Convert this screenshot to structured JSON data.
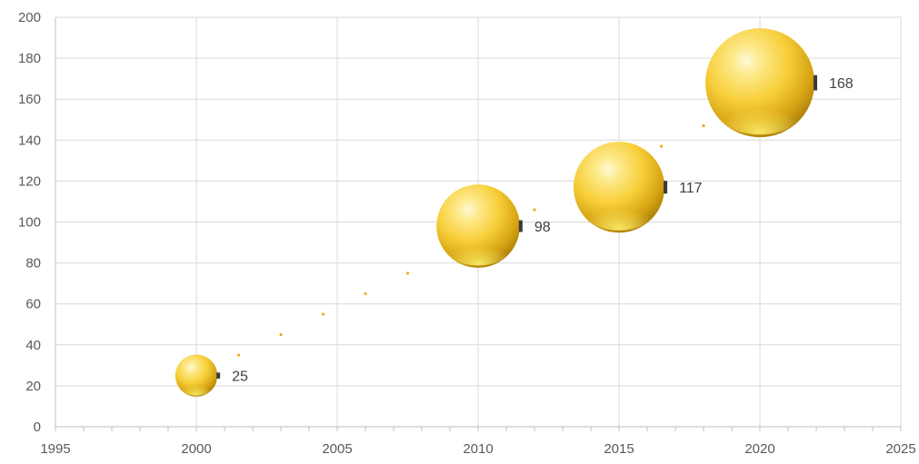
{
  "chart_data": {
    "type": "scatter",
    "subtype": "bubble",
    "title": "",
    "xlabel": "",
    "ylabel": "",
    "xlim": [
      1995,
      2025
    ],
    "ylim": [
      0,
      200
    ],
    "x_ticks": [
      1995,
      2000,
      2005,
      2010,
      2015,
      2020,
      2025
    ],
    "y_ticks": [
      0,
      20,
      40,
      60,
      80,
      100,
      120,
      140,
      160,
      180,
      200
    ],
    "x_minor_step": 1,
    "grid": true,
    "legend": "none",
    "series": [
      {
        "color": "#f2c029",
        "points": [
          {
            "x": 2000,
            "y": 25,
            "size": 25,
            "label": "25"
          },
          {
            "x": 2010,
            "y": 98,
            "size": 98,
            "label": "98"
          },
          {
            "x": 2015,
            "y": 117,
            "size": 117,
            "label": "117"
          },
          {
            "x": 2020,
            "y": 168,
            "size": 168,
            "label": "168"
          }
        ]
      }
    ],
    "trendline": {
      "color": "#f5a623",
      "style": "dotted",
      "points": [
        {
          "x": 2001.5,
          "y": 35
        },
        {
          "x": 2003,
          "y": 45
        },
        {
          "x": 2004.5,
          "y": 55
        },
        {
          "x": 2006,
          "y": 65
        },
        {
          "x": 2007.5,
          "y": 75
        },
        {
          "x": 2009,
          "y": 85
        },
        {
          "x": 2010.5,
          "y": 95
        },
        {
          "x": 2012,
          "y": 106
        },
        {
          "x": 2013.5,
          "y": 116
        },
        {
          "x": 2015,
          "y": 126
        },
        {
          "x": 2016.5,
          "y": 137
        },
        {
          "x": 2018,
          "y": 147
        }
      ]
    }
  }
}
